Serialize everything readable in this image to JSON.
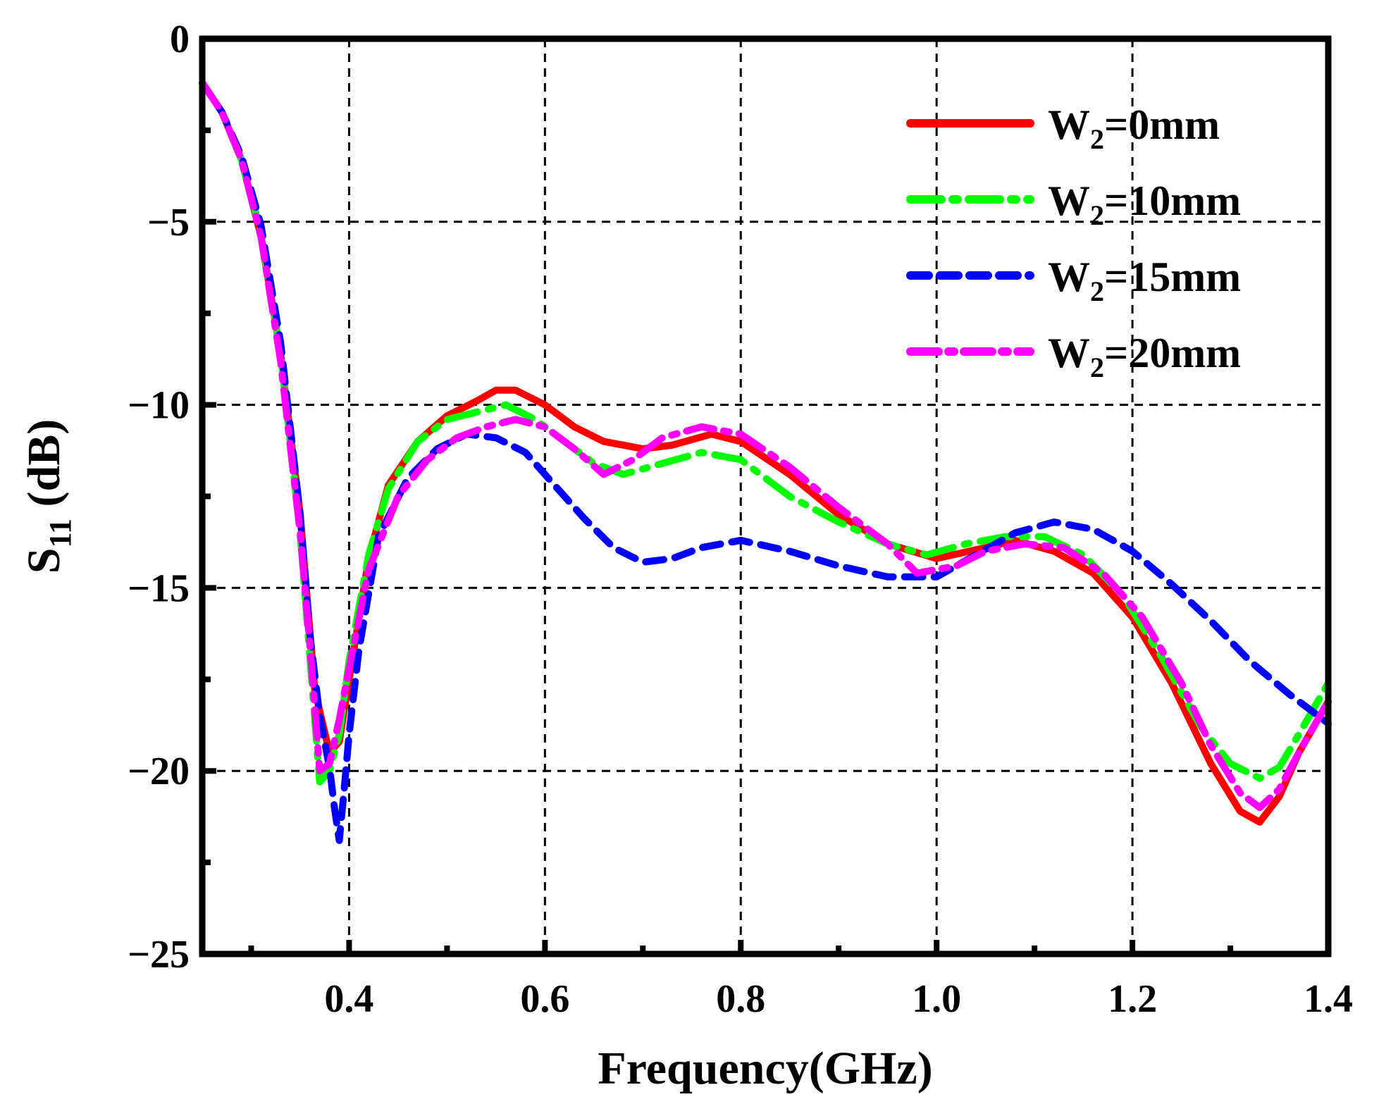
{
  "chart_data": {
    "type": "line",
    "title": "",
    "xlabel": "Frequency(GHz)",
    "ylabel": {
      "main": "S",
      "sub": "11",
      "unit": " (dB)"
    },
    "xlim": [
      0.25,
      1.4
    ],
    "ylim": [
      -25,
      0
    ],
    "xticks": [
      0.4,
      0.6,
      0.8,
      1.0,
      1.2,
      1.4
    ],
    "xtick_labels": [
      "0.4",
      "0.6",
      "0.8",
      "1.0",
      "1.2",
      "1.4"
    ],
    "yticks": [
      0,
      -5,
      -10,
      -15,
      -20,
      -25
    ],
    "ytick_labels": [
      "0",
      "−5",
      "−10",
      "−15",
      "−20",
      "−25"
    ],
    "grid": true,
    "legend_position": "top-right",
    "series": [
      {
        "name": "W2=0mm",
        "label_main": "W",
        "label_sub": "2",
        "label_rest": "=0mm",
        "color": "#ff0000",
        "style": "solid",
        "x": [
          0.25,
          0.27,
          0.29,
          0.31,
          0.33,
          0.35,
          0.365,
          0.38,
          0.39,
          0.4,
          0.42,
          0.44,
          0.47,
          0.5,
          0.53,
          0.55,
          0.57,
          0.6,
          0.63,
          0.66,
          0.7,
          0.73,
          0.77,
          0.8,
          0.85,
          0.9,
          0.95,
          1.0,
          1.05,
          1.08,
          1.12,
          1.16,
          1.2,
          1.24,
          1.28,
          1.31,
          1.33,
          1.35,
          1.37,
          1.4
        ],
        "y": [
          -1.2,
          -2.0,
          -3.3,
          -5.4,
          -8.6,
          -13.0,
          -17.8,
          -19.5,
          -19.2,
          -17.5,
          -14.2,
          -12.2,
          -11.0,
          -10.3,
          -9.9,
          -9.6,
          -9.6,
          -10.0,
          -10.6,
          -11.0,
          -11.2,
          -11.1,
          -10.8,
          -11.0,
          -11.9,
          -13.0,
          -13.8,
          -14.2,
          -13.9,
          -13.7,
          -14.0,
          -14.6,
          -15.8,
          -17.6,
          -19.8,
          -21.1,
          -21.4,
          -20.7,
          -19.5,
          -18.1
        ]
      },
      {
        "name": "W2=10mm",
        "label_main": "W",
        "label_sub": "2",
        "label_rest": "=10mm",
        "color": "#00ff00",
        "style": "dashdot",
        "x": [
          0.25,
          0.27,
          0.29,
          0.31,
          0.33,
          0.35,
          0.37,
          0.38,
          0.39,
          0.4,
          0.42,
          0.44,
          0.47,
          0.5,
          0.53,
          0.56,
          0.59,
          0.62,
          0.65,
          0.68,
          0.72,
          0.76,
          0.8,
          0.85,
          0.9,
          0.95,
          0.99,
          1.03,
          1.07,
          1.11,
          1.15,
          1.19,
          1.23,
          1.27,
          1.3,
          1.33,
          1.35,
          1.37,
          1.4
        ],
        "y": [
          -1.2,
          -2.0,
          -3.3,
          -5.3,
          -8.6,
          -13.5,
          -20.3,
          -20.0,
          -19.0,
          -17.0,
          -14.1,
          -12.3,
          -11.0,
          -10.4,
          -10.2,
          -10.0,
          -10.4,
          -11.0,
          -11.6,
          -11.9,
          -11.6,
          -11.3,
          -11.5,
          -12.5,
          -13.2,
          -13.8,
          -14.1,
          -13.8,
          -13.6,
          -13.6,
          -14.1,
          -15.2,
          -16.9,
          -18.8,
          -19.8,
          -20.2,
          -19.9,
          -19.0,
          -17.6
        ]
      },
      {
        "name": "W2=15mm",
        "label_main": "W",
        "label_sub": "2",
        "label_rest": "=15mm",
        "color": "#0000ff",
        "style": "dashed",
        "x": [
          0.25,
          0.27,
          0.29,
          0.31,
          0.33,
          0.35,
          0.36,
          0.37,
          0.38,
          0.385,
          0.39,
          0.395,
          0.4,
          0.41,
          0.43,
          0.46,
          0.49,
          0.52,
          0.55,
          0.58,
          0.61,
          0.64,
          0.67,
          0.7,
          0.73,
          0.76,
          0.8,
          0.85,
          0.9,
          0.95,
          1.0,
          1.04,
          1.08,
          1.12,
          1.16,
          1.2,
          1.24,
          1.28,
          1.32,
          1.36,
          1.4
        ],
        "y": [
          -1.2,
          -2.0,
          -3.2,
          -5.1,
          -8.3,
          -13.0,
          -16.3,
          -18.5,
          -19.9,
          -21.0,
          -21.9,
          -20.5,
          -19.0,
          -16.7,
          -13.6,
          -12.0,
          -11.2,
          -10.8,
          -10.9,
          -11.3,
          -12.2,
          -13.1,
          -13.9,
          -14.3,
          -14.2,
          -13.9,
          -13.7,
          -14.0,
          -14.4,
          -14.7,
          -14.7,
          -14.1,
          -13.5,
          -13.2,
          -13.4,
          -14.0,
          -14.9,
          -15.9,
          -17.0,
          -17.9,
          -18.7
        ]
      },
      {
        "name": "W2=20mm",
        "label_main": "W",
        "label_sub": "2",
        "label_rest": "=20mm",
        "color": "#ff00ff",
        "style": "longdash",
        "x": [
          0.25,
          0.27,
          0.29,
          0.31,
          0.33,
          0.35,
          0.36,
          0.37,
          0.38,
          0.39,
          0.4,
          0.42,
          0.45,
          0.48,
          0.51,
          0.54,
          0.57,
          0.6,
          0.63,
          0.66,
          0.69,
          0.72,
          0.76,
          0.8,
          0.85,
          0.9,
          0.95,
          0.98,
          1.02,
          1.05,
          1.09,
          1.13,
          1.17,
          1.21,
          1.25,
          1.28,
          1.31,
          1.33,
          1.35,
          1.37,
          1.4
        ],
        "y": [
          -1.2,
          -2.0,
          -3.3,
          -5.4,
          -8.8,
          -13.5,
          -16.6,
          -20.0,
          -19.8,
          -18.6,
          -17.2,
          -14.5,
          -12.5,
          -11.5,
          -10.9,
          -10.6,
          -10.4,
          -10.6,
          -11.2,
          -11.9,
          -11.5,
          -10.9,
          -10.6,
          -10.8,
          -11.7,
          -12.8,
          -13.8,
          -14.6,
          -14.4,
          -14.0,
          -13.8,
          -13.9,
          -14.6,
          -15.8,
          -17.6,
          -19.3,
          -20.6,
          -21.0,
          -20.5,
          -19.5,
          -18.1
        ]
      }
    ]
  }
}
